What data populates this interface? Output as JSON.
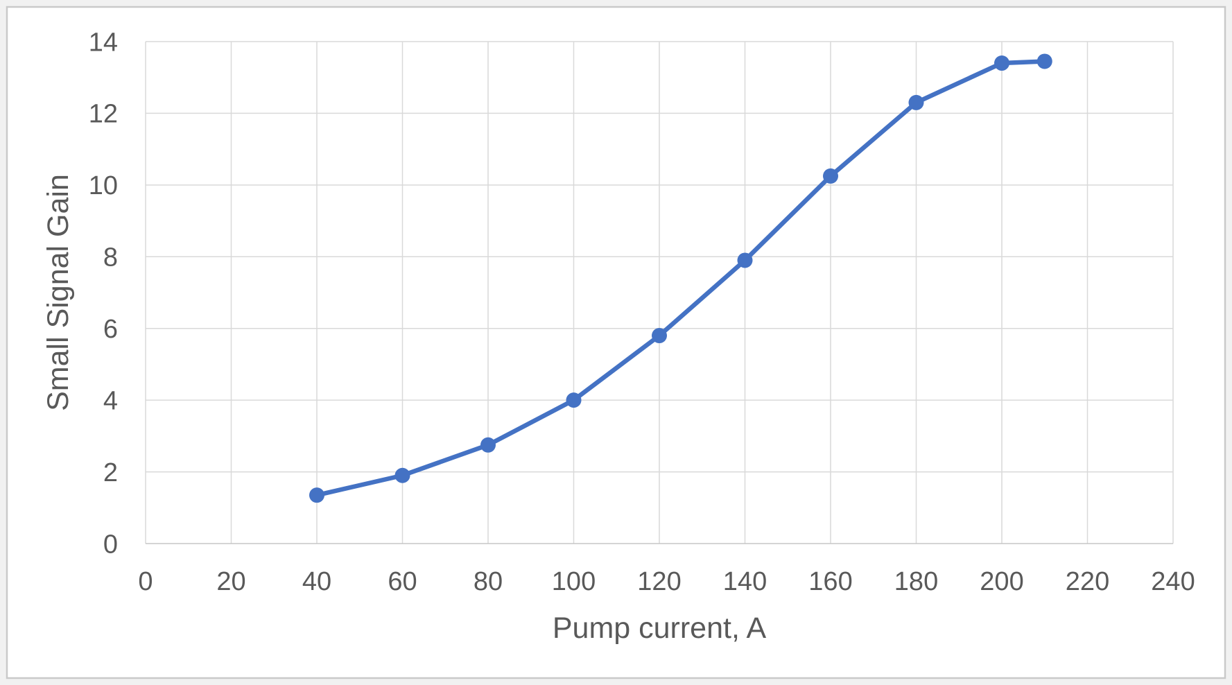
{
  "colors": {
    "page_background": "#f1f1f1",
    "chart_background": "#ffffff",
    "chart_border": "#c9c9c9",
    "gridline": "#d9d9d9",
    "axis_line": "#c6c6c6",
    "series": "#4472c4",
    "text": "#595959"
  },
  "chart_data": {
    "type": "line",
    "title": "",
    "xlabel": "Pump current, A",
    "ylabel": "Small Signal Gain",
    "x": [
      40,
      60,
      80,
      100,
      120,
      140,
      160,
      180,
      200,
      210
    ],
    "y": [
      1.35,
      1.9,
      2.75,
      4.0,
      5.8,
      7.9,
      10.25,
      12.3,
      13.4,
      13.45
    ],
    "xlim": [
      0,
      240
    ],
    "ylim": [
      0,
      14
    ],
    "xticks": [
      0,
      20,
      40,
      60,
      80,
      100,
      120,
      140,
      160,
      180,
      200,
      220,
      240
    ],
    "yticks": [
      0,
      2,
      4,
      6,
      8,
      10,
      12,
      14
    ],
    "grid": true,
    "legend": "none",
    "marker": "circle",
    "line_style": "solid"
  }
}
